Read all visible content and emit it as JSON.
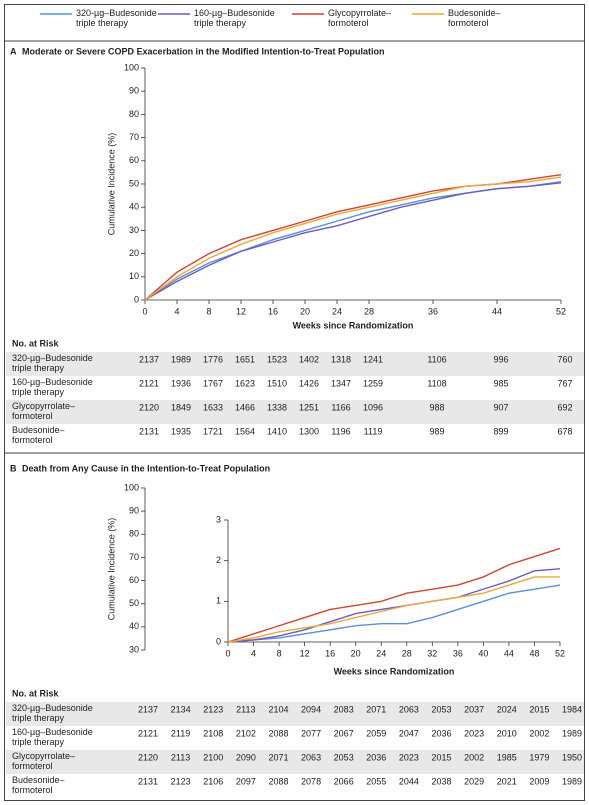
{
  "chart_data": [
    {
      "type": "line",
      "panel_label": "A",
      "title": "Moderate or Severe COPD Exacerbation in the Modified Intention-to-Treat Population",
      "ylabel": "Cumulative Incidence (%)",
      "xlabel": "Weeks since Randomization",
      "x": [
        0,
        4,
        8,
        12,
        16,
        20,
        24,
        28,
        32,
        36,
        40,
        44,
        48,
        52
      ],
      "xlim": [
        0,
        52
      ],
      "xticks": [
        0,
        4,
        8,
        12,
        16,
        20,
        24,
        28,
        36,
        44,
        52
      ],
      "ylim": [
        0,
        100
      ],
      "yticks": [
        0,
        10,
        20,
        30,
        40,
        50,
        60,
        70,
        80,
        90,
        100
      ],
      "series": [
        {
          "name": "320-µg–Budesonide\ntriple therapy",
          "color": "#5b8fd6",
          "values": [
            0,
            9,
            16,
            21,
            26,
            30,
            34,
            38,
            41,
            44,
            46,
            48,
            49,
            51
          ]
        },
        {
          "name": "160-µg–Budesonide\ntriple therapy",
          "color": "#6a5cc4",
          "values": [
            0,
            8,
            15,
            21,
            25,
            29,
            32,
            36,
            40,
            43,
            46,
            48,
            49,
            50.5
          ]
        },
        {
          "name": "Glycopyrrolate–\nformoterol",
          "color": "#d2452e",
          "values": [
            0,
            12,
            20,
            26,
            30,
            34,
            38,
            41,
            44,
            47,
            49,
            50,
            52,
            54
          ]
        },
        {
          "name": "Budesonide–\nformoterol",
          "color": "#efa63a",
          "values": [
            0,
            10,
            18,
            24,
            29,
            33,
            37,
            40,
            43,
            46,
            49,
            50,
            51,
            53
          ]
        }
      ],
      "at_risk": {
        "title": "No. at Risk",
        "x": [
          0,
          4,
          8,
          12,
          16,
          20,
          24,
          28,
          36,
          44,
          52
        ],
        "rows": [
          {
            "label": "320-µg–Budesonide\ntriple therapy",
            "values": [
              2137,
              1989,
              1776,
              1651,
              1523,
              1402,
              1318,
              1241,
              1106,
              996,
              760
            ]
          },
          {
            "label": "160-µg–Budesonide\ntriple therapy",
            "values": [
              2121,
              1936,
              1767,
              1623,
              1510,
              1426,
              1347,
              1259,
              1108,
              985,
              767
            ]
          },
          {
            "label": "Glycopyrrolate–\nformoterol",
            "values": [
              2120,
              1849,
              1633,
              1466,
              1338,
              1251,
              1166,
              1096,
              988,
              907,
              692
            ]
          },
          {
            "label": "Budesonide–\nformoterol",
            "values": [
              2131,
              1935,
              1721,
              1564,
              1410,
              1300,
              1196,
              1119,
              989,
              899,
              678
            ]
          }
        ]
      }
    },
    {
      "type": "line",
      "panel_label": "B",
      "title": "Death from Any Cause in the Intention-to-Treat Population",
      "ylabel": "Cumulative Incidence (%)",
      "xlabel": "Weeks since Randomization",
      "ylim": [
        30,
        100
      ],
      "yticks": [
        30,
        40,
        50,
        60,
        70,
        80,
        90,
        100
      ],
      "inset": {
        "x": [
          0,
          4,
          8,
          12,
          16,
          20,
          24,
          28,
          32,
          36,
          40,
          44,
          48,
          52
        ],
        "xlim": [
          0,
          52
        ],
        "xticks": [
          0,
          4,
          8,
          12,
          16,
          20,
          24,
          28,
          32,
          36,
          40,
          44,
          48,
          52
        ],
        "ylim": [
          0,
          3
        ],
        "yticks": [
          0,
          1,
          2,
          3
        ],
        "series": [
          {
            "color": "#5b8fd6",
            "values": [
              0,
              0.05,
              0.1,
              0.2,
              0.3,
              0.4,
              0.45,
              0.45,
              0.6,
              0.8,
              1.0,
              1.2,
              1.3,
              1.4
            ]
          },
          {
            "color": "#6a5cc4",
            "values": [
              0,
              0.05,
              0.15,
              0.3,
              0.5,
              0.7,
              0.8,
              0.9,
              1.0,
              1.1,
              1.3,
              1.5,
              1.75,
              1.8
            ]
          },
          {
            "color": "#d2452e",
            "values": [
              0,
              0.2,
              0.4,
              0.6,
              0.8,
              0.9,
              1.0,
              1.2,
              1.3,
              1.4,
              1.6,
              1.9,
              2.1,
              2.3
            ]
          },
          {
            "color": "#efa63a",
            "values": [
              0,
              0.1,
              0.25,
              0.35,
              0.45,
              0.6,
              0.75,
              0.9,
              1.0,
              1.1,
              1.2,
              1.4,
              1.6,
              1.6
            ]
          }
        ]
      },
      "at_risk": {
        "title": "No. at Risk",
        "rows": [
          {
            "label": "320-µg–Budesonide\ntriple therapy",
            "values": [
              2137,
              2134,
              2123,
              2113,
              2104,
              2094,
              2083,
              2071,
              2063,
              2053,
              2037,
              2024,
              2015,
              1984
            ]
          },
          {
            "label": "160-µg–Budesonide\ntriple therapy",
            "values": [
              2121,
              2119,
              2108,
              2102,
              2088,
              2077,
              2067,
              2059,
              2047,
              2036,
              2023,
              2010,
              2002,
              1989
            ]
          },
          {
            "label": "Glycopyrrolate–\nformoterol",
            "values": [
              2120,
              2113,
              2100,
              2090,
              2071,
              2063,
              2053,
              2036,
              2023,
              2015,
              2002,
              1985,
              1979,
              1950
            ]
          },
          {
            "label": "Budesonide–\nformoterol",
            "values": [
              2131,
              2123,
              2106,
              2097,
              2088,
              2078,
              2066,
              2055,
              2044,
              2038,
              2029,
              2021,
              2009,
              1989
            ]
          }
        ]
      }
    }
  ]
}
